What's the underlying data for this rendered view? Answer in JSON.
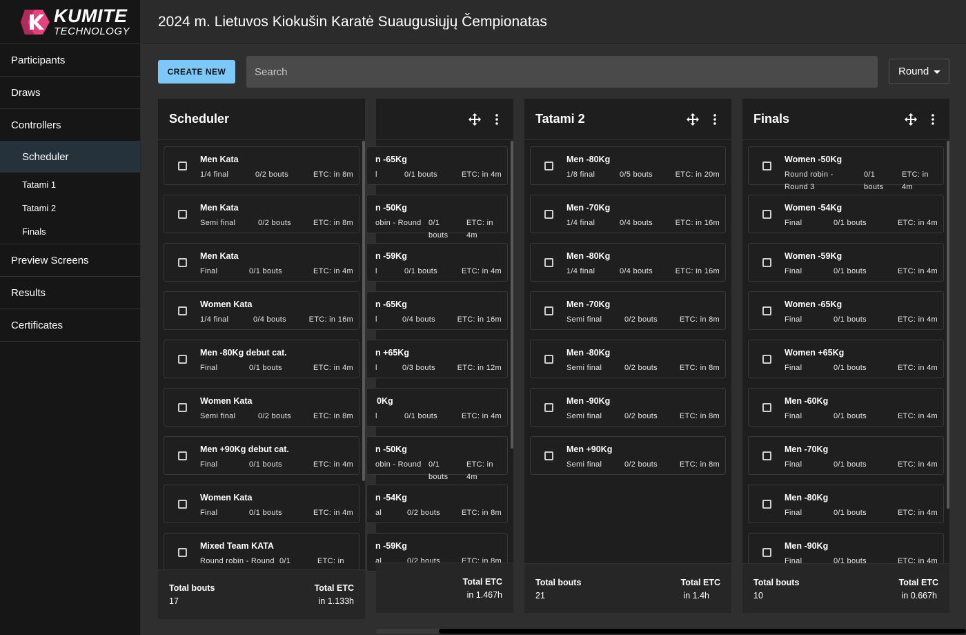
{
  "logo": {
    "title": "KUMITE",
    "subtitle": "TECHNOLOGY",
    "mark": "K",
    "accent": "#e8407a"
  },
  "sidebar": {
    "items": [
      {
        "label": "Participants"
      },
      {
        "label": "Draws"
      },
      {
        "label": "Controllers"
      }
    ],
    "controller_sub": [
      {
        "label": "Scheduler"
      },
      {
        "label": "Tatami 1"
      },
      {
        "label": "Tatami 2"
      },
      {
        "label": "Finals"
      }
    ],
    "items_after": [
      {
        "label": "Preview Screens"
      },
      {
        "label": "Results"
      },
      {
        "label": "Certificates"
      }
    ]
  },
  "header": {
    "title": "2024 m. Lietuvos Kiokušin Karatė Suaugusiųjų Čempionatas"
  },
  "toolbar": {
    "create_label": "CREATE NEW",
    "search_placeholder": "Search",
    "round_label": "Round"
  },
  "columns": [
    {
      "title": "Scheduler",
      "cards": [
        {
          "title": "Men Kata",
          "round": "1/4 final",
          "bouts": "0/2 bouts",
          "etc": "ETC: in 8m"
        },
        {
          "title": "Men Kata",
          "round": "Semi final",
          "bouts": "0/2 bouts",
          "etc": "ETC: in 8m"
        },
        {
          "title": "Men Kata",
          "round": "Final",
          "bouts": "0/1 bouts",
          "etc": "ETC: in 4m"
        },
        {
          "title": "Women Kata",
          "round": "1/4 final",
          "bouts": "0/4 bouts",
          "etc": "ETC: in 16m"
        },
        {
          "title": "Men -80Kg debut cat.",
          "round": "Final",
          "bouts": "0/1 bouts",
          "etc": "ETC: in 4m"
        },
        {
          "title": "Women Kata",
          "round": "Semi final",
          "bouts": "0/2 bouts",
          "etc": "ETC: in 8m"
        },
        {
          "title": "Men +90Kg debut cat.",
          "round": "Final",
          "bouts": "0/1 bouts",
          "etc": "ETC: in 4m"
        },
        {
          "title": "Women Kata",
          "round": "Final",
          "bouts": "0/1 bouts",
          "etc": "ETC: in 4m"
        },
        {
          "title": "Mixed Team KATA",
          "round": "Round robin - Round",
          "bouts": "0/1",
          "etc": "ETC: in"
        }
      ],
      "footer": {
        "bouts_label": "Total bouts",
        "bouts_value": "17",
        "etc_label": "Total ETC",
        "etc_value": "in 1.133h"
      }
    },
    {
      "title": "",
      "cards": [
        {
          "title": "n -65Kg",
          "round": "l",
          "bouts": "0/1 bouts",
          "etc": "ETC: in 4m"
        },
        {
          "title": "n -50Kg",
          "round": "obin - Round",
          "bouts": "0/1 bouts",
          "etc": "ETC: in 4m"
        },
        {
          "title": "n -59Kg",
          "round": "l",
          "bouts": "0/1 bouts",
          "etc": "ETC: in 4m"
        },
        {
          "title": "n -65Kg",
          "round": "l",
          "bouts": "0/4 bouts",
          "etc": "ETC: in 16m"
        },
        {
          "title": "n +65Kg",
          "round": "l",
          "bouts": "0/3 bouts",
          "etc": "ETC: in 12m"
        },
        {
          "title": "0Kg",
          "round": "l",
          "bouts": "0/1 bouts",
          "etc": "ETC: in 4m"
        },
        {
          "title": "n -50Kg",
          "round": "obin - Round",
          "bouts": "0/1 bouts",
          "etc": "ETC: in 4m"
        },
        {
          "title": "n -54Kg",
          "round": "al",
          "bouts": "0/2 bouts",
          "etc": "ETC: in 8m"
        },
        {
          "title": "n -59Kg",
          "round": "al",
          "bouts": "0/2 bouts",
          "etc": "ETC: in 8m"
        }
      ],
      "footer": {
        "etc_label": "Total ETC",
        "etc_value": "in 1.467h"
      }
    },
    {
      "title": "Tatami 2",
      "cards": [
        {
          "title": "Men -80Kg",
          "round": "1/8 final",
          "bouts": "0/5 bouts",
          "etc": "ETC: in 20m"
        },
        {
          "title": "Men -70Kg",
          "round": "1/4 final",
          "bouts": "0/4 bouts",
          "etc": "ETC: in 16m"
        },
        {
          "title": "Men -80Kg",
          "round": "1/4 final",
          "bouts": "0/4 bouts",
          "etc": "ETC: in 16m"
        },
        {
          "title": "Men -70Kg",
          "round": "Semi final",
          "bouts": "0/2 bouts",
          "etc": "ETC: in 8m"
        },
        {
          "title": "Men -80Kg",
          "round": "Semi final",
          "bouts": "0/2 bouts",
          "etc": "ETC: in 8m"
        },
        {
          "title": "Men -90Kg",
          "round": "Semi final",
          "bouts": "0/2 bouts",
          "etc": "ETC: in 8m"
        },
        {
          "title": "Men +90Kg",
          "round": "Semi final",
          "bouts": "0/2 bouts",
          "etc": "ETC: in 8m"
        }
      ],
      "footer": {
        "bouts_label": "Total bouts",
        "bouts_value": "21",
        "etc_label": "Total ETC",
        "etc_value": "in 1.4h"
      }
    },
    {
      "title": "Finals",
      "cards": [
        {
          "title": "Women -50Kg",
          "round": "Round robin - Round 3",
          "bouts": "0/1 bouts",
          "etc": "ETC: in 4m"
        },
        {
          "title": "Women -54Kg",
          "round": "Final",
          "bouts": "0/1 bouts",
          "etc": "ETC: in 4m"
        },
        {
          "title": "Women -59Kg",
          "round": "Final",
          "bouts": "0/1 bouts",
          "etc": "ETC: in 4m"
        },
        {
          "title": "Women -65Kg",
          "round": "Final",
          "bouts": "0/1 bouts",
          "etc": "ETC: in 4m"
        },
        {
          "title": "Women +65Kg",
          "round": "Final",
          "bouts": "0/1 bouts",
          "etc": "ETC: in 4m"
        },
        {
          "title": "Men -60Kg",
          "round": "Final",
          "bouts": "0/1 bouts",
          "etc": "ETC: in 4m"
        },
        {
          "title": "Men -70Kg",
          "round": "Final",
          "bouts": "0/1 bouts",
          "etc": "ETC: in 4m"
        },
        {
          "title": "Men -80Kg",
          "round": "Final",
          "bouts": "0/1 bouts",
          "etc": "ETC: in 4m"
        },
        {
          "title": "Men -90Kg",
          "round": "Final",
          "bouts": "0/1 bouts",
          "etc": "ETC: in 4m"
        }
      ],
      "footer": {
        "bouts_label": "Total bouts",
        "bouts_value": "10",
        "etc_label": "Total ETC",
        "etc_value": "in 0.667h"
      }
    }
  ]
}
